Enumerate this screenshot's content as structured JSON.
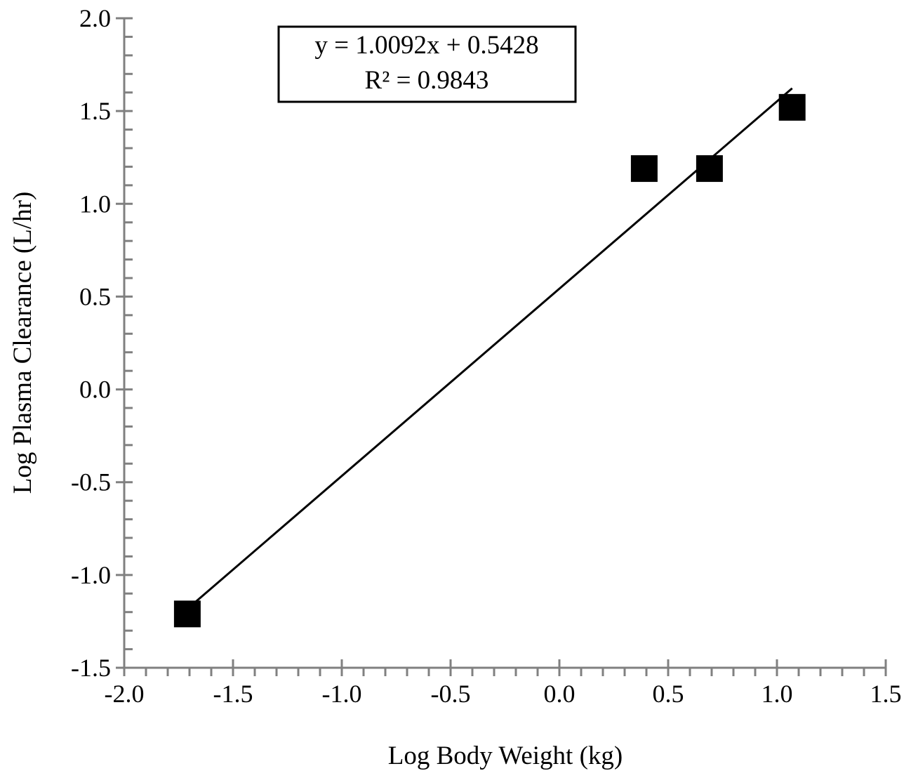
{
  "chart_data": {
    "type": "scatter",
    "title": "",
    "xlabel": "Log Body Weight (kg)",
    "ylabel": "Log Plasma Clearance (L/hr)",
    "xlim": [
      -2.0,
      1.5
    ],
    "ylim": [
      -1.5,
      2.0
    ],
    "xticks": [
      "-2.0",
      "-1.5",
      "-1.0",
      "-0.5",
      "0.0",
      "0.5",
      "1.0",
      "1.5"
    ],
    "yticks": [
      "-1.5",
      "-1.0",
      "-0.5",
      "0.0",
      "0.5",
      "1.0",
      "1.5",
      "2.0"
    ],
    "grid": false,
    "points": [
      {
        "x": -1.71,
        "y": -1.21
      },
      {
        "x": 0.39,
        "y": 1.19
      },
      {
        "x": 0.69,
        "y": 1.19
      },
      {
        "x": 1.07,
        "y": 1.52
      }
    ],
    "trendline": {
      "slope": 1.0092,
      "intercept": 0.5428,
      "x_range": [
        -1.71,
        1.07
      ]
    },
    "annotation": {
      "equation": "y = 1.0092x + 0.5428",
      "r_squared": "R² = 0.9843"
    },
    "colors": {
      "axis": "#808080",
      "marker": "#000000",
      "line": "#000000"
    }
  }
}
